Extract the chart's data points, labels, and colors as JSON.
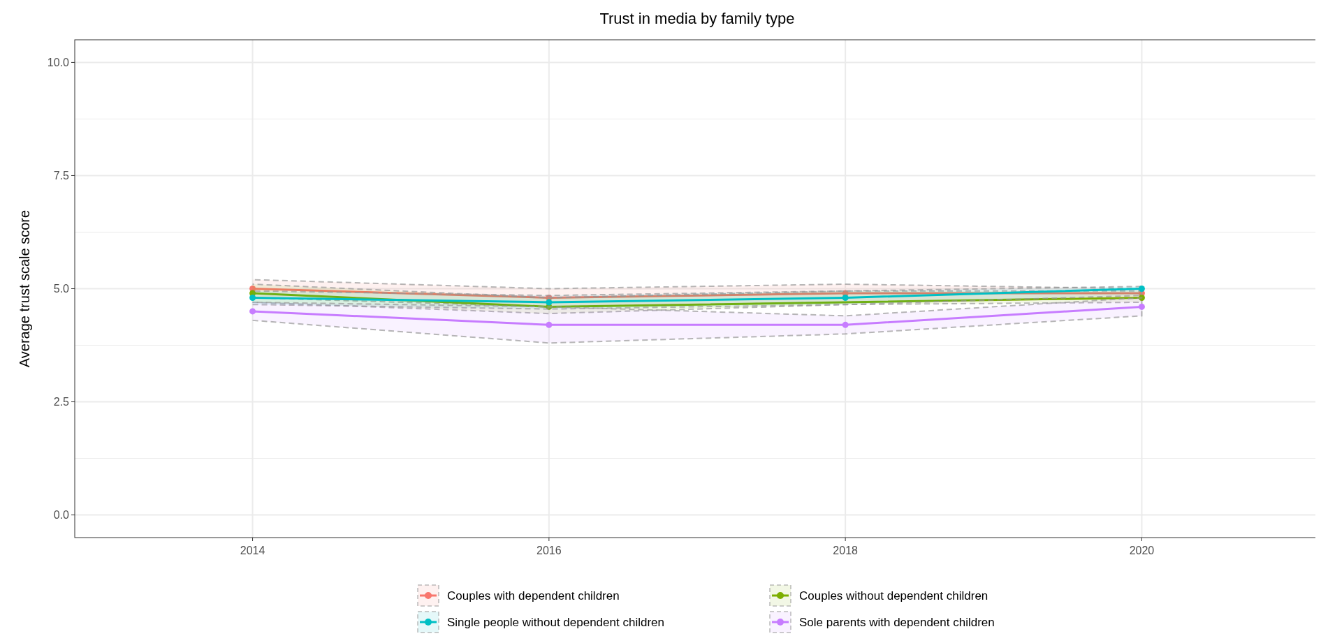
{
  "chart_data": {
    "type": "line",
    "title": "Trust in media by family type",
    "ylabel": "Average trust scale score",
    "x": [
      2014,
      2016,
      2018,
      2020
    ],
    "xlim": [
      2012.8,
      2021.2
    ],
    "xticks": [
      2014,
      2016,
      2018,
      2020
    ],
    "ylim": [
      -0.5,
      10.5
    ],
    "yticks": [
      {
        "value": 0,
        "label": "0.0"
      },
      {
        "value": 1.25,
        "label": null
      },
      {
        "value": 2.5,
        "label": "2.5"
      },
      {
        "value": 3.75,
        "label": null
      },
      {
        "value": 5,
        "label": "5.0"
      },
      {
        "value": 6.25,
        "label": null
      },
      {
        "value": 7.5,
        "label": "7.5"
      },
      {
        "value": 8.75,
        "label": null
      },
      {
        "value": 10,
        "label": "10.0"
      }
    ],
    "grid": true,
    "legend": "bottom",
    "marker": "circle",
    "series": [
      {
        "name": "Couples with dependent children",
        "color": "#f8766d",
        "values": [
          5.0,
          4.8,
          4.9,
          4.9
        ],
        "lower": [
          4.8,
          4.6,
          4.7,
          4.8
        ],
        "upper": [
          5.2,
          5.0,
          5.1,
          5.0
        ]
      },
      {
        "name": "Couples without dependent children",
        "color": "#7cae00",
        "values": [
          4.9,
          4.6,
          null,
          4.8
        ],
        "lower": [
          4.7,
          4.45,
          4.65,
          4.7
        ],
        "upper": [
          5.1,
          4.8,
          4.95,
          4.95
        ]
      },
      {
        "name": "Single people without dependent children",
        "color": "#00bfc4",
        "values": [
          4.8,
          4.7,
          4.8,
          5.0
        ],
        "lower": [
          4.65,
          4.55,
          4.65,
          4.85
        ],
        "upper": [
          4.95,
          4.85,
          4.95,
          5.05
        ]
      },
      {
        "name": "Sole parents with dependent children",
        "color": "#c77cff",
        "values": [
          4.5,
          4.2,
          4.2,
          4.6
        ],
        "lower": [
          4.3,
          3.8,
          4.0,
          4.4
        ],
        "upper": [
          4.7,
          4.6,
          4.4,
          4.8
        ]
      }
    ]
  }
}
